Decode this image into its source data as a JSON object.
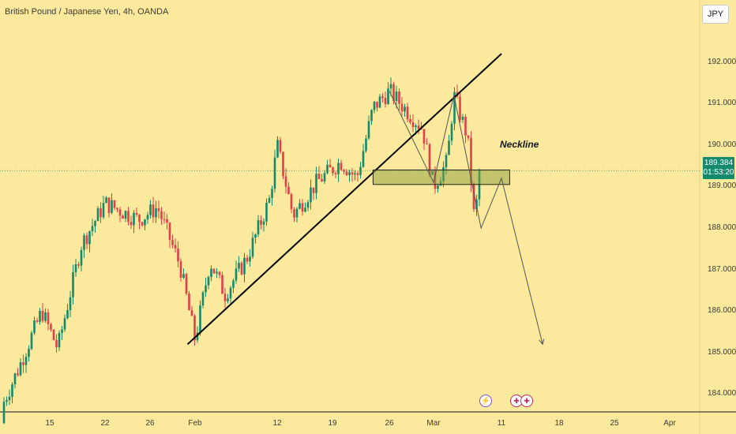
{
  "header": {
    "title": "British Pound / Japanese Yen, 4h, OANDA",
    "currency_button": "JPY"
  },
  "price_label": {
    "price": "189.384",
    "countdown": "01:53:20"
  },
  "annotation": {
    "neckline_label": "Neckline"
  },
  "events": [
    {
      "icon": "lightning-icon",
      "glyph": "⚡"
    },
    {
      "icon": "uk-flag-icon",
      "glyph": "✚"
    },
    {
      "icon": "uk-flag-icon",
      "glyph": "✚"
    }
  ],
  "colors": {
    "background": "#fbe99d",
    "up": "#138a6b",
    "down": "#e0404a",
    "price_line": "#138a6b"
  },
  "chart_data": {
    "type": "candlestick",
    "title": "British Pound / Japanese Yen, 4h, OANDA",
    "x_tick_labels": [
      "15",
      "22",
      "26",
      "Feb",
      "12",
      "19",
      "26",
      "Mar",
      "11",
      "18",
      "25",
      "Apr"
    ],
    "y_tick_labels": [
      "192.000",
      "191.000",
      "190.000",
      "189.000",
      "188.000",
      "187.000",
      "186.000",
      "185.000",
      "184.000"
    ],
    "ylim": [
      183.1,
      192.9
    ],
    "current_price": 189.384,
    "price_path": [
      {
        "date": "Jan 8",
        "price": 183.3
      },
      {
        "date": "Jan 11",
        "price": 184.6
      },
      {
        "date": "Jan 14",
        "price": 186.0
      },
      {
        "date": "Jan 16",
        "price": 185.1
      },
      {
        "date": "Jan 19",
        "price": 187.6
      },
      {
        "date": "Jan 22",
        "price": 188.6
      },
      {
        "date": "Jan 25",
        "price": 188.2
      },
      {
        "date": "Jan 27",
        "price": 188.5
      },
      {
        "date": "Jan 30",
        "price": 187.1
      },
      {
        "date": "Feb 1",
        "price": 185.3
      },
      {
        "date": "Feb 3",
        "price": 187.2
      },
      {
        "date": "Feb 5",
        "price": 186.4
      },
      {
        "date": "Feb 8",
        "price": 187.3
      },
      {
        "date": "Feb 11",
        "price": 188.7
      },
      {
        "date": "Feb 12",
        "price": 190.0
      },
      {
        "date": "Feb 14",
        "price": 188.3
      },
      {
        "date": "Feb 17",
        "price": 189.1
      },
      {
        "date": "Feb 20",
        "price": 189.6
      },
      {
        "date": "Feb 22",
        "price": 189.2
      },
      {
        "date": "Feb 24",
        "price": 190.9
      },
      {
        "date": "Feb 26",
        "price": 191.3
      },
      {
        "date": "Feb 29",
        "price": 190.4
      },
      {
        "date": "Mar 1",
        "price": 189.0
      },
      {
        "date": "Mar 3",
        "price": 189.6
      },
      {
        "date": "Mar 4",
        "price": 191.2
      },
      {
        "date": "Mar 6",
        "price": 190.2
      },
      {
        "date": "Mar 7",
        "price": 188.2
      },
      {
        "date": "Mar 8",
        "price": 189.384
      }
    ],
    "trendline": [
      {
        "date": "Jan 31",
        "price": 185.2
      },
      {
        "date": "Mar 11",
        "price": 192.2
      }
    ],
    "neckline_zone": {
      "date_from": "Feb 24",
      "date_to": "Mar 12",
      "price_from": 189.05,
      "price_to": 189.4
    },
    "projection_path": [
      {
        "date": "Feb 26",
        "price": 191.3
      },
      {
        "date": "Mar 1",
        "price": 189.1
      },
      {
        "date": "Mar 4",
        "price": 191.2
      },
      {
        "date": "Mar 8",
        "price": 188.0
      },
      {
        "date": "Mar 11",
        "price": 189.2
      },
      {
        "date": "Mar 16",
        "price": 185.2
      }
    ],
    "grid": false
  }
}
